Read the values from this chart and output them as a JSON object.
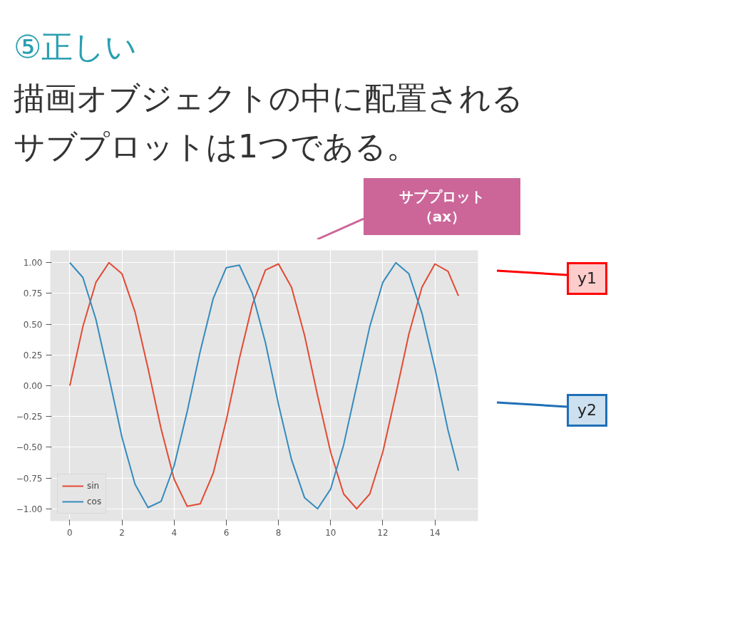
{
  "chart_data": {
    "type": "line",
    "title": "⑤正しい",
    "subtitle": "描画オブジェクトの中に配置されるサブプロットは1つである。",
    "x": [
      0,
      0.5,
      1,
      1.5,
      2,
      2.5,
      3,
      3.5,
      4,
      4.5,
      5,
      5.5,
      6,
      6.5,
      7,
      7.5,
      8,
      8.5,
      9,
      9.5,
      10,
      10.5,
      11,
      11.5,
      12,
      12.5,
      13,
      13.5,
      14,
      14.5,
      14.9
    ],
    "series": [
      {
        "name": "sin",
        "color": "#e24a33",
        "values": [
          0,
          0.48,
          0.84,
          1.0,
          0.91,
          0.6,
          0.14,
          -0.35,
          -0.76,
          -0.98,
          -0.96,
          -0.71,
          -0.28,
          0.22,
          0.66,
          0.94,
          0.99,
          0.8,
          0.41,
          -0.08,
          -0.54,
          -0.88,
          -1.0,
          -0.88,
          -0.54,
          -0.07,
          0.42,
          0.8,
          0.99,
          0.93,
          0.73
        ]
      },
      {
        "name": "cos",
        "color": "#348abd",
        "values": [
          1.0,
          0.88,
          0.54,
          0.07,
          -0.42,
          -0.8,
          -0.99,
          -0.94,
          -0.65,
          -0.21,
          0.28,
          0.71,
          0.96,
          0.98,
          0.75,
          0.35,
          -0.15,
          -0.6,
          -0.91,
          -1.0,
          -0.84,
          -0.48,
          0.0,
          0.48,
          0.84,
          1.0,
          0.91,
          0.59,
          0.14,
          -0.36,
          -0.69
        ]
      }
    ],
    "xlim": [
      -0.75,
      15.65
    ],
    "ylim": [
      -1.1,
      1.1
    ],
    "xticks": [
      0,
      2,
      4,
      6,
      8,
      10,
      12,
      14
    ],
    "yticks": [
      {
        "value": -1,
        "label": "−1.00"
      },
      {
        "value": -0.75,
        "label": "−0.75"
      },
      {
        "value": -0.5,
        "label": "−0.50"
      },
      {
        "value": -0.25,
        "label": "−0.25"
      },
      {
        "value": 0,
        "label": "0.00"
      },
      {
        "value": 0.25,
        "label": "0.25"
      },
      {
        "value": 0.5,
        "label": "0.50"
      },
      {
        "value": 0.75,
        "label": "0.75"
      },
      {
        "value": 1,
        "label": "1.00"
      }
    ],
    "grid": true,
    "legend": "bottom left",
    "marker": "none",
    "line_style": "solid",
    "annotations": [
      "サブプロット（ax）",
      "y1",
      "y2"
    ]
  }
}
